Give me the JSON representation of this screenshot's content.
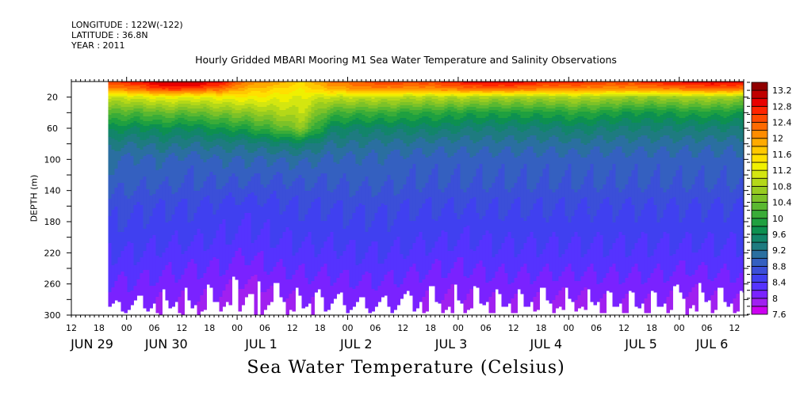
{
  "header": {
    "longitude": "LONGITUDE : 122W(-122)",
    "latitude": "LATITUDE : 36.8N",
    "year": "YEAR : 2011"
  },
  "chart_data": {
    "type": "heatmap",
    "title": "Hourly Gridded MBARI Mooring M1 Sea Water Temperature and Salinity Observations",
    "xlabel": "Sea Water Temperature (Celsius)",
    "ylabel": "DEPTH (m)",
    "x_units": "hours since 2011-06-29 00:00",
    "xlim": [
      12,
      158
    ],
    "ylim": [
      300,
      0
    ],
    "x_tick_hours": [
      12,
      18,
      24,
      30,
      36,
      42,
      48,
      54,
      60,
      66,
      72,
      78,
      84,
      90,
      96,
      102,
      108,
      114,
      120,
      126,
      132,
      138,
      144,
      150,
      156
    ],
    "x_tick_labels": [
      "12",
      "18",
      "00",
      "06",
      "12",
      "18",
      "00",
      "06",
      "12",
      "18",
      "00",
      "06",
      "12",
      "18",
      "00",
      "06",
      "12",
      "18",
      "00",
      "06",
      "12",
      "18",
      "00",
      "06",
      "12"
    ],
    "date_labels": [
      {
        "label": "JUN 29",
        "hour": 12
      },
      {
        "label": "JUN 30",
        "hour": 36
      },
      {
        "label": "JUL  1",
        "hour": 60
      },
      {
        "label": "JUL  2",
        "hour": 84
      },
      {
        "label": "JUL  3",
        "hour": 108
      },
      {
        "label": "JUL  4",
        "hour": 132
      },
      {
        "label": "JUL  5",
        "hour": 156
      },
      {
        "label": "JUL  6",
        "hour": 174
      }
    ],
    "y_ticks": [
      20,
      60,
      100,
      140,
      180,
      220,
      260,
      300
    ],
    "y_tick_labels": [
      "20",
      "60",
      "100",
      "140",
      "180",
      "220",
      "260",
      "300"
    ],
    "colorbar": {
      "levels": [
        7.6,
        7.8,
        8.0,
        8.2,
        8.4,
        8.6,
        8.8,
        9.0,
        9.2,
        9.4,
        9.6,
        9.8,
        10.0,
        10.2,
        10.4,
        10.6,
        10.8,
        11.0,
        11.2,
        11.4,
        11.6,
        11.8,
        12.0,
        12.2,
        12.4,
        12.6,
        12.8,
        13.0,
        13.2,
        13.4
      ],
      "labels": [
        "7.6",
        "8",
        "8.4",
        "8.8",
        "9.2",
        "9.6",
        "10",
        "10.4",
        "10.8",
        "11.2",
        "11.6",
        "12",
        "12.4",
        "12.8",
        "13.2"
      ],
      "colors": [
        "#cc00f0",
        "#a020f0",
        "#7a22ff",
        "#5533ff",
        "#4040f0",
        "#3b4fd8",
        "#3460c0",
        "#2a6fa0",
        "#1e7b80",
        "#12856a",
        "#0d9050",
        "#1fa040",
        "#3aac38",
        "#5ab830",
        "#7cc228",
        "#98cc20",
        "#b4d818",
        "#d4e610",
        "#f0f000",
        "#ffe000",
        "#ffc800",
        "#ffaa00",
        "#ff8c00",
        "#ff6a00",
        "#ff4a00",
        "#ff2400",
        "#e80000",
        "#c00000",
        "#900000"
      ]
    },
    "depths": [
      0,
      10,
      20,
      40,
      60,
      80,
      100,
      130,
      160,
      200,
      240,
      280,
      300
    ],
    "times": [
      20,
      26,
      32,
      38,
      44,
      50,
      56,
      62,
      68,
      74,
      80,
      86,
      92,
      98,
      104,
      110,
      116,
      122,
      128,
      134,
      140,
      146,
      152,
      158
    ],
    "values": [
      [
        12.6,
        12.0,
        11.0,
        10.3,
        9.7,
        9.3,
        9.0,
        8.9,
        8.7,
        8.5,
        8.3,
        8.1,
        7.9
      ],
      [
        12.8,
        12.2,
        11.1,
        10.2,
        9.6,
        9.2,
        8.95,
        8.85,
        8.65,
        8.5,
        8.3,
        8.05,
        7.9
      ],
      [
        13.1,
        12.6,
        11.3,
        10.4,
        9.7,
        9.3,
        9.0,
        8.85,
        8.6,
        8.45,
        8.25,
        8.0,
        7.85
      ],
      [
        13.2,
        12.5,
        11.2,
        10.3,
        9.6,
        9.2,
        8.9,
        8.8,
        8.6,
        8.45,
        8.2,
        8.0,
        7.85
      ],
      [
        12.9,
        12.3,
        11.3,
        10.5,
        9.8,
        9.3,
        9.0,
        8.8,
        8.55,
        8.4,
        8.2,
        7.95,
        7.8
      ],
      [
        12.2,
        11.8,
        11.4,
        10.6,
        9.9,
        9.3,
        9.0,
        8.8,
        8.5,
        8.35,
        8.1,
        7.8,
        7.7
      ],
      [
        12.0,
        11.6,
        11.3,
        10.8,
        10.2,
        9.4,
        9.0,
        8.75,
        8.55,
        8.4,
        8.2,
        7.9,
        7.8
      ],
      [
        11.6,
        11.4,
        11.2,
        11.0,
        10.6,
        9.5,
        9.05,
        8.8,
        8.6,
        8.45,
        8.25,
        8.0,
        7.85
      ],
      [
        12.2,
        11.8,
        11.0,
        10.2,
        9.6,
        9.2,
        8.95,
        8.8,
        8.6,
        8.45,
        8.25,
        8.0,
        7.9
      ],
      [
        12.4,
        12.0,
        11.0,
        10.1,
        9.5,
        9.2,
        8.95,
        8.85,
        8.65,
        8.5,
        8.3,
        8.05,
        7.9
      ],
      [
        12.6,
        12.1,
        11.0,
        10.1,
        9.5,
        9.15,
        8.95,
        8.85,
        8.65,
        8.5,
        8.3,
        8.05,
        7.9
      ],
      [
        12.5,
        12.0,
        10.9,
        10.0,
        9.5,
        9.15,
        8.9,
        8.8,
        8.6,
        8.45,
        8.25,
        8.0,
        7.9
      ],
      [
        12.6,
        12.1,
        10.9,
        10.0,
        9.5,
        9.1,
        8.9,
        8.8,
        8.6,
        8.45,
        8.2,
        7.95,
        7.8
      ],
      [
        12.9,
        12.2,
        10.9,
        9.9,
        9.4,
        9.1,
        8.9,
        8.8,
        8.6,
        8.4,
        8.2,
        7.95,
        7.8
      ],
      [
        13.0,
        12.3,
        10.8,
        9.9,
        9.4,
        9.1,
        8.9,
        8.8,
        8.6,
        8.45,
        8.25,
        8.0,
        7.85
      ],
      [
        12.9,
        12.2,
        10.8,
        9.9,
        9.4,
        9.1,
        8.9,
        8.8,
        8.6,
        8.45,
        8.25,
        8.0,
        7.85
      ],
      [
        12.7,
        12.1,
        10.8,
        9.9,
        9.4,
        9.1,
        8.9,
        8.8,
        8.6,
        8.45,
        8.25,
        7.95,
        7.8
      ],
      [
        12.7,
        12.1,
        10.9,
        10.0,
        9.5,
        9.15,
        8.9,
        8.8,
        8.6,
        8.45,
        8.25,
        7.95,
        7.75
      ],
      [
        12.6,
        12.0,
        10.8,
        9.9,
        9.4,
        9.1,
        8.9,
        8.8,
        8.6,
        8.45,
        8.25,
        8.0,
        7.85
      ],
      [
        12.6,
        12.0,
        10.7,
        9.8,
        9.4,
        9.1,
        8.9,
        8.8,
        8.6,
        8.45,
        8.25,
        8.0,
        7.85
      ],
      [
        12.8,
        12.1,
        10.7,
        9.8,
        9.4,
        9.1,
        8.9,
        8.8,
        8.6,
        8.45,
        8.25,
        8.0,
        7.85
      ],
      [
        12.9,
        12.2,
        10.8,
        9.9,
        9.4,
        9.1,
        8.9,
        8.8,
        8.6,
        8.45,
        8.2,
        7.9,
        7.8
      ],
      [
        13.0,
        12.3,
        10.8,
        9.9,
        9.4,
        9.1,
        8.9,
        8.8,
        8.6,
        8.45,
        8.25,
        7.95,
        7.85
      ],
      [
        12.9,
        12.2,
        10.7,
        9.8,
        9.4,
        9.1,
        8.9,
        8.8,
        8.6,
        8.45,
        8.25,
        8.0,
        7.85
      ]
    ]
  }
}
